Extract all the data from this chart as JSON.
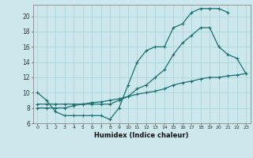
{
  "xlabel": "Humidex (Indice chaleur)",
  "bg_color": "#cce8ec",
  "line_color": "#1a7070",
  "grid_color": "#b0d8dc",
  "xlim": [
    -0.5,
    23.5
  ],
  "ylim": [
    6,
    21.5
  ],
  "xticks": [
    0,
    1,
    2,
    3,
    4,
    5,
    6,
    7,
    8,
    9,
    10,
    11,
    12,
    13,
    14,
    15,
    16,
    17,
    18,
    19,
    20,
    21,
    22,
    23
  ],
  "yticks": [
    6,
    8,
    10,
    12,
    14,
    16,
    18,
    20
  ],
  "line1": {
    "x": [
      0,
      1,
      2,
      3,
      4,
      5,
      6,
      7,
      8,
      9,
      10,
      11,
      12,
      13,
      14,
      15,
      16,
      17,
      18,
      19,
      20,
      21
    ],
    "y": [
      10,
      9,
      7.5,
      7,
      7,
      7,
      7,
      7,
      6.5,
      8,
      11,
      14,
      15.5,
      16,
      16,
      18.5,
      19,
      20.5,
      21,
      21,
      21,
      20.5
    ]
  },
  "line2": {
    "x": [
      0,
      1,
      2,
      3,
      4,
      5,
      6,
      7,
      8,
      9,
      10,
      11,
      12,
      13,
      14,
      15,
      16,
      17,
      18,
      19,
      20,
      21,
      22,
      23
    ],
    "y": [
      8.5,
      8.5,
      8.5,
      8.5,
      8.5,
      8.5,
      8.5,
      8.5,
      8.5,
      9,
      9.5,
      10.5,
      11,
      12,
      13,
      15,
      16.5,
      17.5,
      18.5,
      18.5,
      16,
      15,
      14.5,
      12.5
    ]
  },
  "line3": {
    "x": [
      0,
      1,
      2,
      3,
      4,
      5,
      6,
      7,
      8,
      9,
      10,
      11,
      12,
      13,
      14,
      15,
      16,
      17,
      18,
      19,
      20,
      21,
      22,
      23
    ],
    "y": [
      8,
      8,
      8,
      8,
      8.3,
      8.5,
      8.7,
      8.8,
      9,
      9.2,
      9.5,
      9.8,
      10,
      10.2,
      10.5,
      11,
      11.3,
      11.5,
      11.8,
      12,
      12,
      12.2,
      12.3,
      12.5
    ]
  }
}
